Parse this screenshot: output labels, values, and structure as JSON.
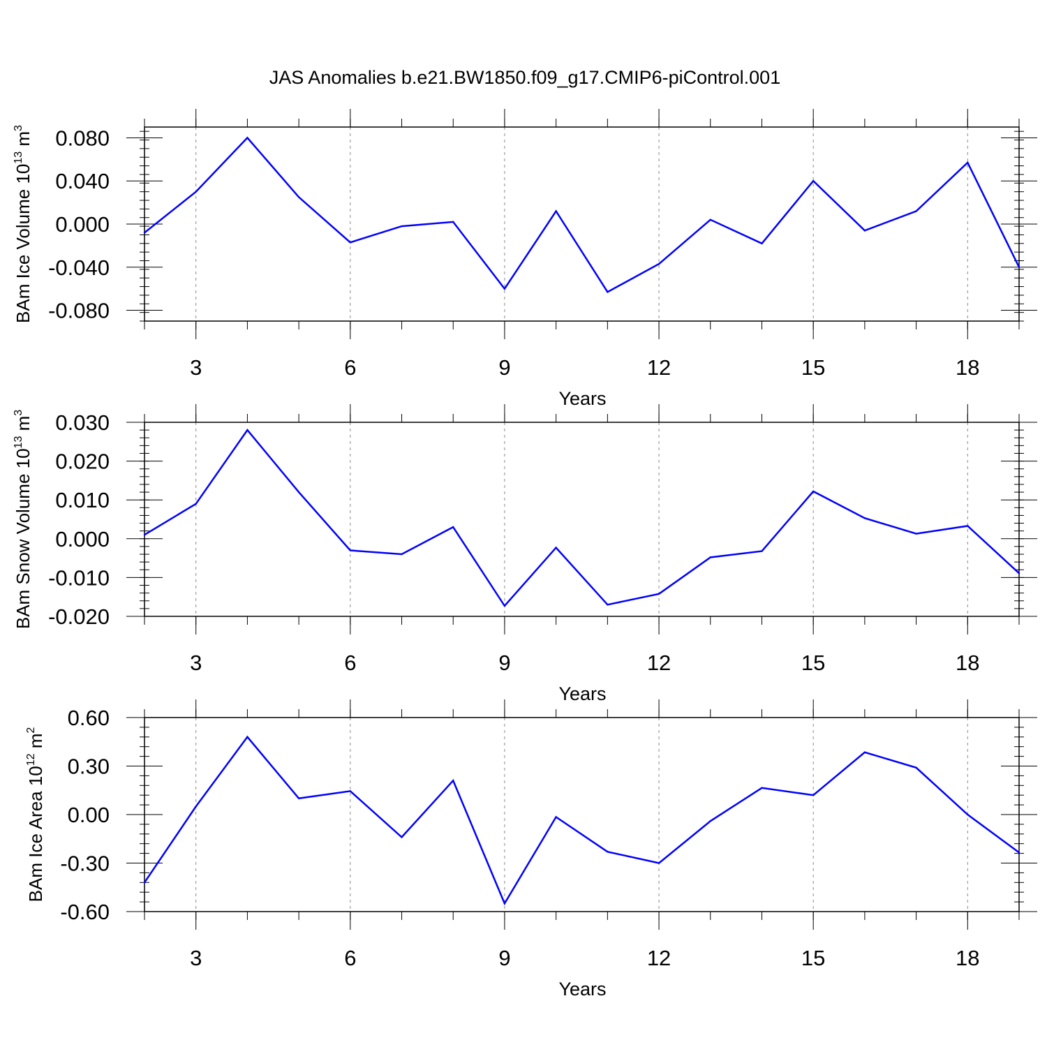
{
  "title": "JAS Anomalies b.e21.BW1850.f09_g17.CMIP6-piControl.001",
  "colors": {
    "line": "#0000ff",
    "frame": "#000000",
    "grid": "#888888"
  },
  "chart_data": [
    {
      "type": "line",
      "ylabel": {
        "text": "BAm Ice Volume 10",
        "exponent": "13",
        "unit": "m",
        "unit_exponent": "3"
      },
      "xlabel": "Years",
      "x": [
        2,
        3,
        4,
        5,
        6,
        7,
        8,
        9,
        10,
        11,
        12,
        13,
        14,
        15,
        16,
        17,
        18,
        19
      ],
      "y": [
        -0.008,
        0.03,
        0.08,
        0.025,
        -0.017,
        -0.002,
        0.002,
        -0.06,
        0.012,
        -0.063,
        -0.037,
        0.004,
        -0.018,
        0.04,
        -0.006,
        0.012,
        0.057,
        -0.04
      ],
      "xlim": [
        2,
        19
      ],
      "ylim": [
        -0.09,
        0.09
      ],
      "xticks": [
        3,
        6,
        9,
        12,
        15,
        18
      ],
      "yticks": [
        -0.08,
        -0.04,
        0.0,
        0.04,
        0.08
      ],
      "ytick_labels": [
        "-0.080",
        "-0.040",
        "0.000",
        "0.040",
        "0.080"
      ],
      "xgrid": [
        3,
        6,
        9,
        12,
        15,
        18
      ]
    },
    {
      "type": "line",
      "ylabel": {
        "text": "BAm Snow Volume 10",
        "exponent": "13",
        "unit": "m",
        "unit_exponent": "3"
      },
      "xlabel": "Years",
      "x": [
        2,
        3,
        4,
        5,
        6,
        7,
        8,
        9,
        10,
        11,
        12,
        13,
        14,
        15,
        16,
        17,
        18,
        19
      ],
      "y": [
        0.001,
        0.009,
        0.028,
        0.012,
        -0.003,
        -0.004,
        0.003,
        -0.0173,
        -0.0023,
        -0.017,
        -0.0142,
        -0.0048,
        -0.0032,
        0.0122,
        0.0053,
        0.0013,
        0.0033,
        -0.0089
      ],
      "xlim": [
        2,
        19
      ],
      "ylim": [
        -0.02,
        0.03
      ],
      "xticks": [
        3,
        6,
        9,
        12,
        15,
        18
      ],
      "yticks": [
        -0.02,
        -0.01,
        0.0,
        0.01,
        0.02,
        0.03
      ],
      "ytick_labels": [
        "-0.020",
        "-0.010",
        "0.000",
        "0.010",
        "0.020",
        "0.030"
      ],
      "xgrid": [
        3,
        6,
        9,
        12,
        15,
        18
      ]
    },
    {
      "type": "line",
      "ylabel": {
        "text": "BAm Ice Area 10",
        "exponent": "12",
        "unit": "m",
        "unit_exponent": "2"
      },
      "xlabel": "Years",
      "x": [
        2,
        3,
        4,
        5,
        6,
        7,
        8,
        9,
        10,
        11,
        12,
        13,
        14,
        15,
        16,
        17,
        18,
        19
      ],
      "y": [
        -0.42,
        0.05,
        0.48,
        0.1,
        0.145,
        -0.14,
        0.21,
        -0.55,
        -0.015,
        -0.23,
        -0.3,
        -0.04,
        0.165,
        0.12,
        0.385,
        0.29,
        0.0,
        -0.235
      ],
      "xlim": [
        2,
        19
      ],
      "ylim": [
        -0.6,
        0.6
      ],
      "xticks": [
        3,
        6,
        9,
        12,
        15,
        18
      ],
      "yticks": [
        -0.6,
        -0.3,
        0.0,
        0.3,
        0.6
      ],
      "ytick_labels": [
        "-0.60",
        "-0.30",
        "0.00",
        "0.30",
        "0.60"
      ],
      "xgrid": [
        3,
        6,
        9,
        12,
        15,
        18
      ]
    }
  ]
}
